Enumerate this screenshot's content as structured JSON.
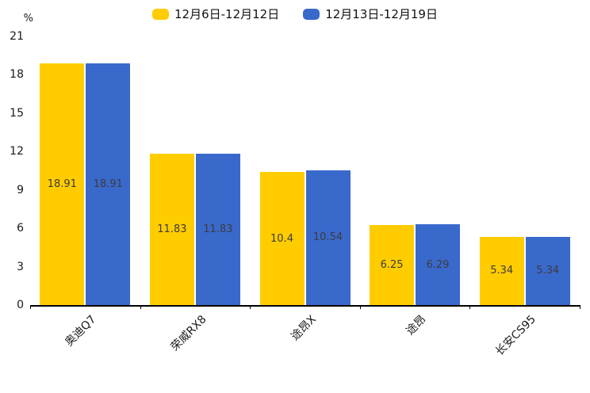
{
  "chart_data": {
    "type": "bar",
    "title": "",
    "ylabel": "%",
    "xlabel": "",
    "ylim": [
      0,
      21
    ],
    "yticks": [
      0,
      3,
      6,
      9,
      12,
      15,
      18,
      21
    ],
    "grid": false,
    "legend_position": "top-center",
    "value_labels": "inside-center",
    "categories": [
      "奥迪Q7",
      "荣威RX8",
      "途昂X",
      "途昂",
      "长安CS95"
    ],
    "series": [
      {
        "name": "12月6日-12月12日",
        "color": "#FFCC00",
        "values": [
          18.91,
          11.83,
          10.4,
          6.25,
          5.34
        ]
      },
      {
        "name": "12月13日-12月19日",
        "color": "#3A69CC",
        "values": [
          18.91,
          11.83,
          10.54,
          6.29,
          5.34
        ]
      }
    ],
    "value_label_color": "#3c3c3c",
    "axis_color": "#000000"
  }
}
